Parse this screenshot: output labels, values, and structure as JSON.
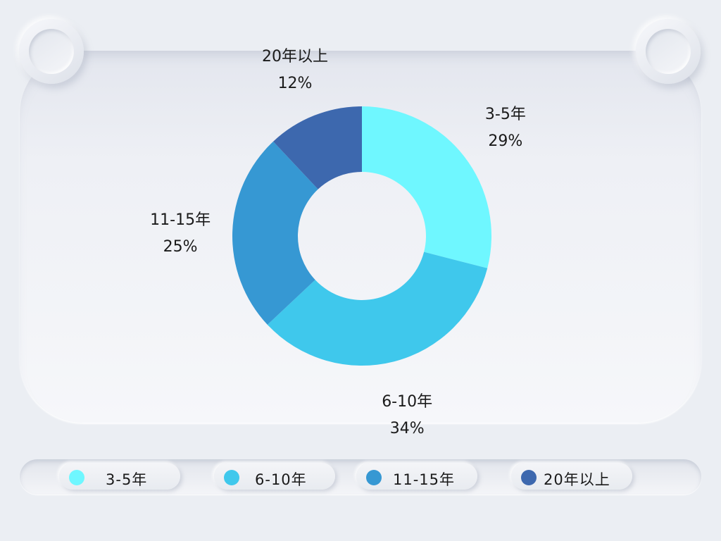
{
  "chart_data": {
    "type": "pie",
    "donut": true,
    "title": "",
    "categories": [
      "3-5年",
      "6-10年",
      "11-15年",
      "20年以上"
    ],
    "values": [
      29,
      34,
      25,
      12
    ],
    "labels": [
      "29%",
      "34%",
      "25%",
      "12%"
    ],
    "colors": [
      "#6ff7ff",
      "#3fc8ec",
      "#3698d3",
      "#3d68ae"
    ],
    "legend_placement": "bottom"
  }
}
